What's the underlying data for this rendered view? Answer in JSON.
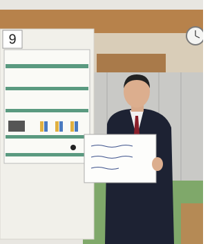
{
  "poster_number": "9"
}
